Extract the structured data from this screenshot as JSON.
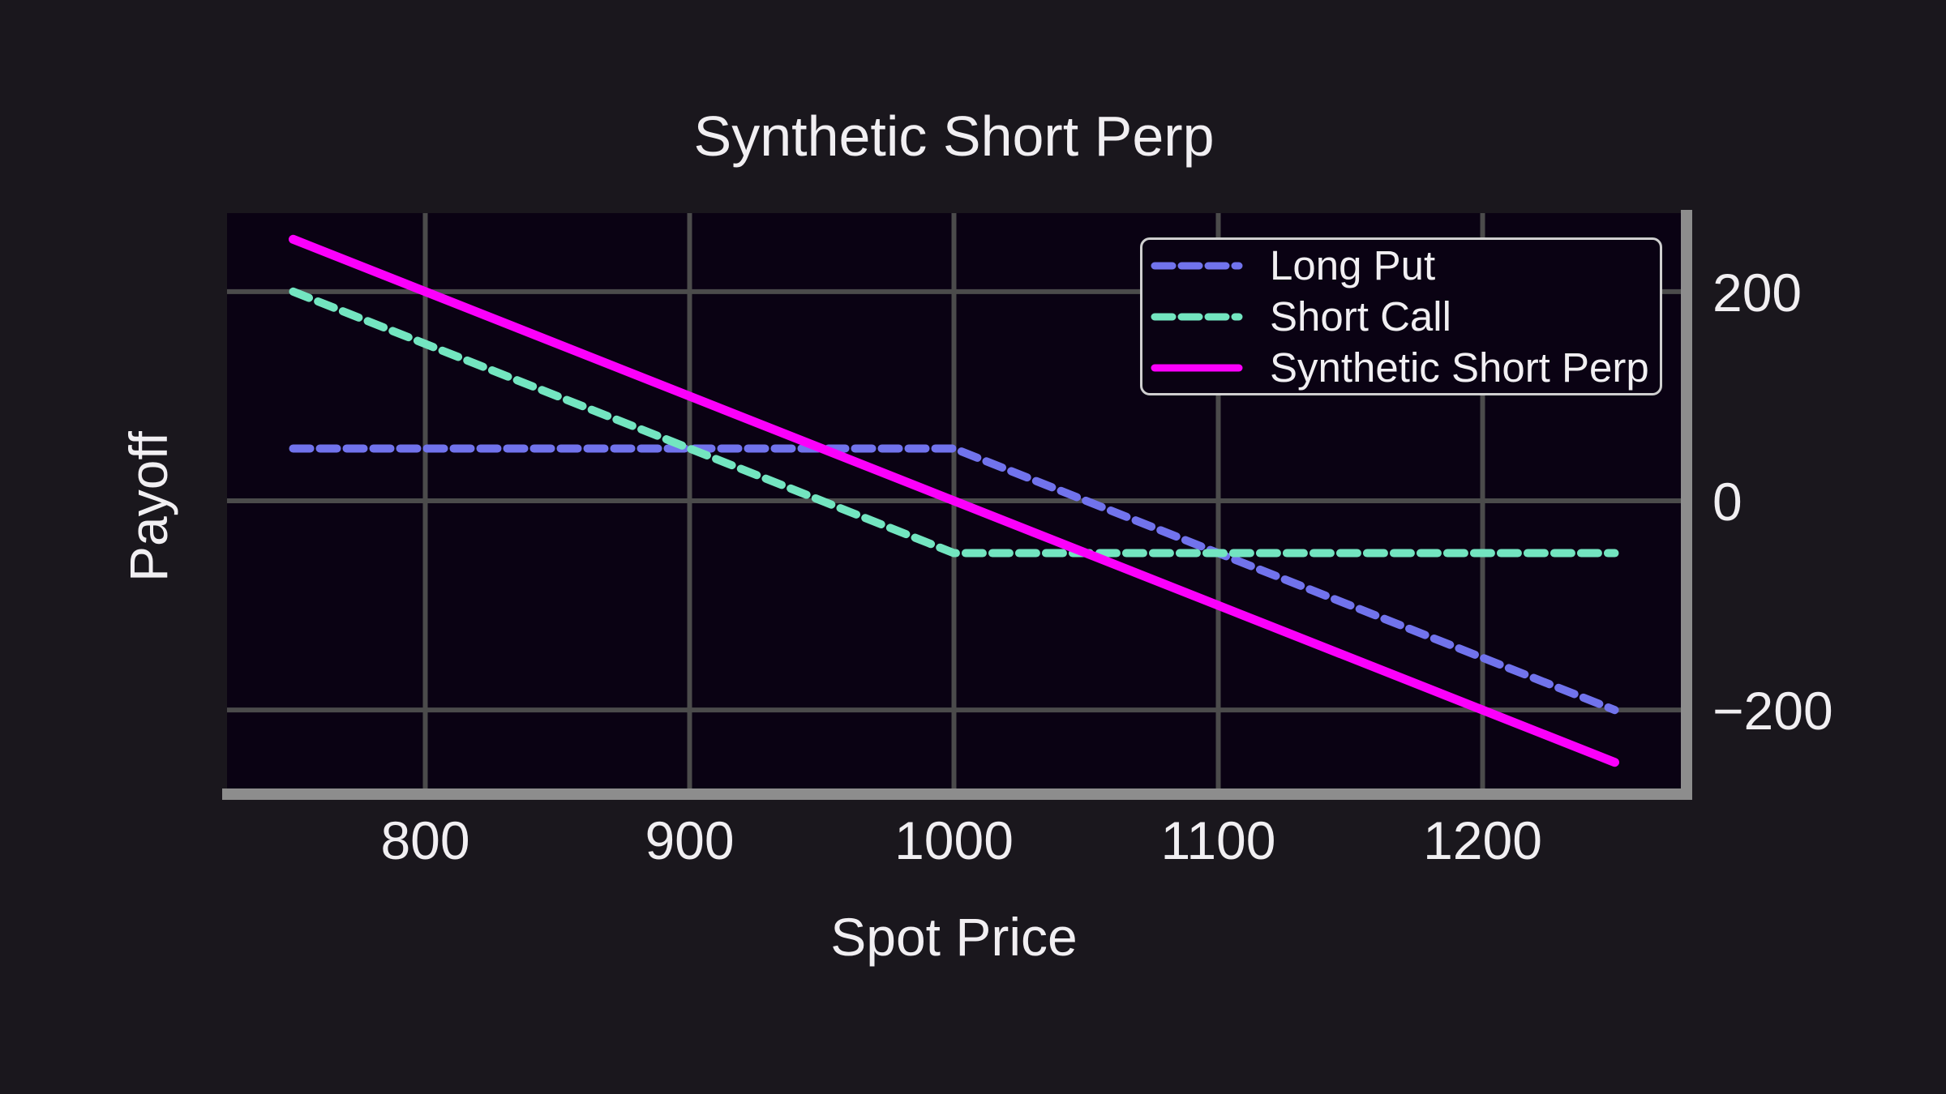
{
  "chart_data": {
    "type": "line",
    "title": "Synthetic Short Perp",
    "xlabel": "Spot Price",
    "ylabel": "Payoff",
    "xlim": [
      725,
      1275
    ],
    "ylim": [
      -275,
      275
    ],
    "x_ticks": [
      {
        "value": 800,
        "label": "800"
      },
      {
        "value": 900,
        "label": "900"
      },
      {
        "value": 1000,
        "label": "1000"
      },
      {
        "value": 1100,
        "label": "1100"
      },
      {
        "value": 1200,
        "label": "1200"
      }
    ],
    "y_ticks": [
      {
        "value": 200,
        "label": "200"
      },
      {
        "value": 0,
        "label": "0"
      },
      {
        "value": -200,
        "label": "−200"
      }
    ],
    "grid": true,
    "legend_position": "upper right",
    "series": [
      {
        "name": "Long Put",
        "color": "#7173ec",
        "style": "dashed",
        "points": [
          [
            750,
            50
          ],
          [
            1000,
            50
          ],
          [
            1250,
            -200
          ]
        ]
      },
      {
        "name": "Short Call",
        "color": "#73e5c0",
        "style": "dashed",
        "points": [
          [
            750,
            200
          ],
          [
            1000,
            -50
          ],
          [
            1250,
            -50
          ]
        ]
      },
      {
        "name": "Synthetic Short Perp",
        "color": "#fb00fb",
        "style": "solid",
        "points": [
          [
            750,
            250
          ],
          [
            1250,
            -250
          ]
        ]
      }
    ],
    "colors": {
      "outer_background": "#1a171d",
      "plot_background": "#0a0213",
      "gridline": "#4b4b4b",
      "spine": "#8d8d8d",
      "text": "#f1eff2"
    }
  }
}
